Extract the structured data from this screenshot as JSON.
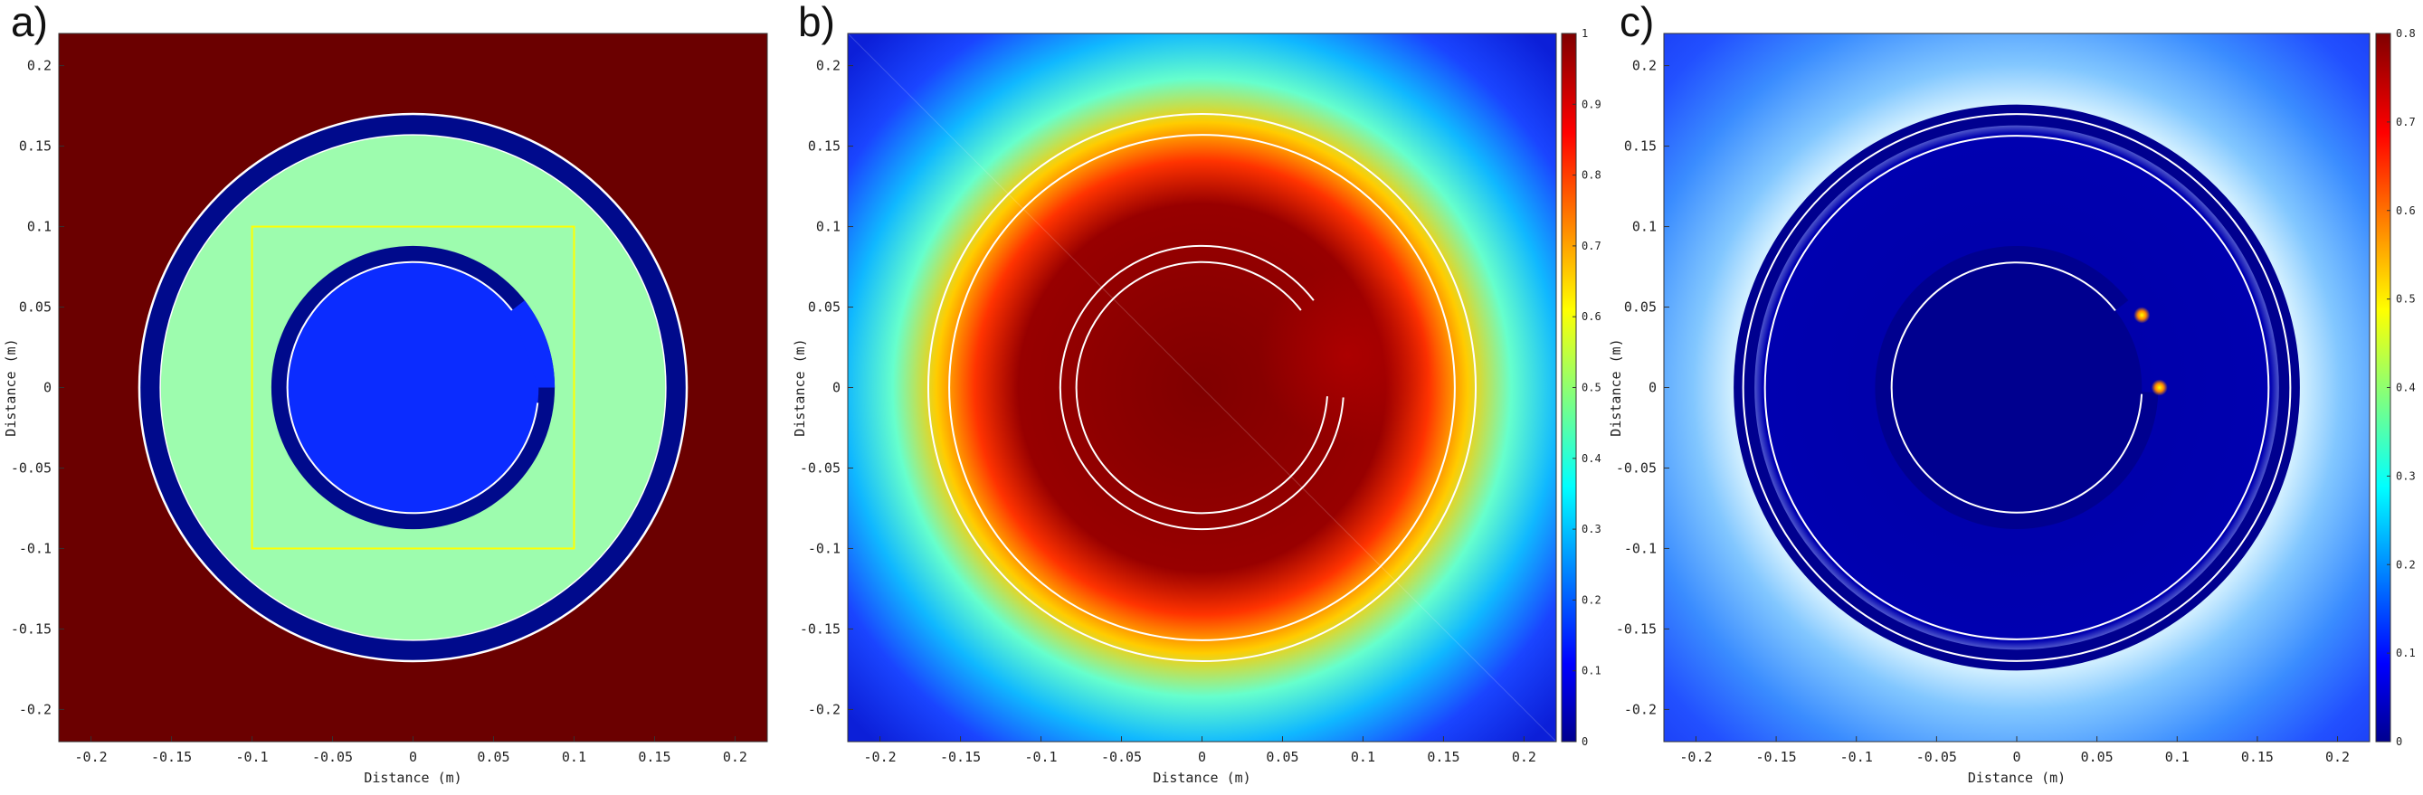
{
  "colors": {
    "dark_red": "#6b0000",
    "navy_ring": "#000a8c",
    "light_green": "#9dfcae",
    "inner_blue": "#0b2cff",
    "yellow_box": "#ffff00",
    "white_line": "#ffffff"
  },
  "chart_data": [
    {
      "panel": "a)",
      "type": "heatmap",
      "xlabel": "Distance (m)",
      "ylabel": "Distance (m)",
      "xlim": [
        -0.22,
        0.22
      ],
      "ylim": [
        -0.22,
        0.22
      ],
      "xticks": [
        -0.2,
        -0.15,
        -0.1,
        -0.05,
        0,
        0.05,
        0.1,
        0.15,
        0.2
      ],
      "yticks": [
        0.2,
        0.15,
        0.1,
        0.05,
        0,
        -0.05,
        -0.1,
        -0.15,
        -0.2
      ],
      "xtick_labels": [
        "-0.2",
        "-0.15",
        "-0.1",
        "-0.05",
        "0",
        "0.05",
        "0.1",
        "0.15",
        "0.2"
      ],
      "ytick_labels": [
        "0.2",
        "0.15",
        "0.1",
        "0.05",
        "0",
        "-0.05",
        "-0.1",
        "-0.15",
        "-0.2"
      ],
      "geometry": {
        "outer_ring_radii": [
          0.157,
          0.17
        ],
        "inner_ring_radii": [
          0.078,
          0.088
        ],
        "inner_ring_gap_deg": [
          0,
          38
        ],
        "highlight_box": [
          -0.1,
          -0.1,
          0.1,
          0.1
        ]
      },
      "colorbar": null
    },
    {
      "panel": "b)",
      "type": "heatmap",
      "xlabel": "Distance (m)",
      "ylabel": "Distance (m)",
      "xlim": [
        -0.22,
        0.22
      ],
      "ylim": [
        -0.22,
        0.22
      ],
      "xticks": [
        -0.2,
        -0.15,
        -0.1,
        -0.05,
        0,
        0.05,
        0.1,
        0.15,
        0.2
      ],
      "yticks": [
        0.2,
        0.15,
        0.1,
        0.05,
        0,
        -0.05,
        -0.1,
        -0.15,
        -0.2
      ],
      "xtick_labels": [
        "-0.2",
        "-0.15",
        "-0.1",
        "-0.05",
        "0",
        "0.05",
        "0.1",
        "0.15",
        "0.2"
      ],
      "ytick_labels": [
        "0.2",
        "0.15",
        "0.1",
        "0.05",
        "0",
        "-0.05",
        "-0.1",
        "-0.15",
        "-0.2"
      ],
      "field": "radial",
      "field_levels": [
        0.0,
        0.2,
        0.45,
        0.8,
        1.0,
        1.0
      ],
      "colorbar": {
        "range": [
          0,
          1
        ],
        "ticks": [
          0,
          0.1,
          0.2,
          0.3,
          0.4,
          0.5,
          0.6,
          0.7,
          0.8,
          0.9,
          1
        ],
        "tick_labels": [
          "0",
          "0.1",
          "0.2",
          "0.3",
          "0.4",
          "0.5",
          "0.6",
          "0.7",
          "0.8",
          "0.9",
          "1"
        ]
      }
    },
    {
      "panel": "c)",
      "type": "heatmap",
      "xlabel": "Distance (m)",
      "ylabel": "Distance (m)",
      "xlim": [
        -0.22,
        0.22
      ],
      "ylim": [
        -0.22,
        0.22
      ],
      "xticks": [
        -0.2,
        -0.15,
        -0.1,
        -0.05,
        0,
        0.05,
        0.1,
        0.15,
        0.2
      ],
      "yticks": [
        0.2,
        0.15,
        0.1,
        0.05,
        0,
        -0.05,
        -0.1,
        -0.15,
        -0.2
      ],
      "xtick_labels": [
        "-0.2",
        "-0.15",
        "-0.1",
        "-0.05",
        "0",
        "0.05",
        "0.1",
        "0.15",
        "0.2"
      ],
      "ytick_labels": [
        "0.2",
        "0.15",
        "0.1",
        "0.05",
        "0",
        "-0.05",
        "-0.1",
        "-0.15",
        "-0.2"
      ],
      "field": "gradient",
      "colorbar": {
        "range": [
          0,
          0.8
        ],
        "ticks": [
          0,
          0.1,
          0.2,
          0.3,
          0.4,
          0.5,
          0.6,
          0.7,
          0.8
        ],
        "tick_labels": [
          "0",
          "0.1",
          "0.2",
          "0.3",
          "0.4",
          "0.5",
          "0.6",
          "0.7",
          "0.8"
        ]
      }
    }
  ]
}
